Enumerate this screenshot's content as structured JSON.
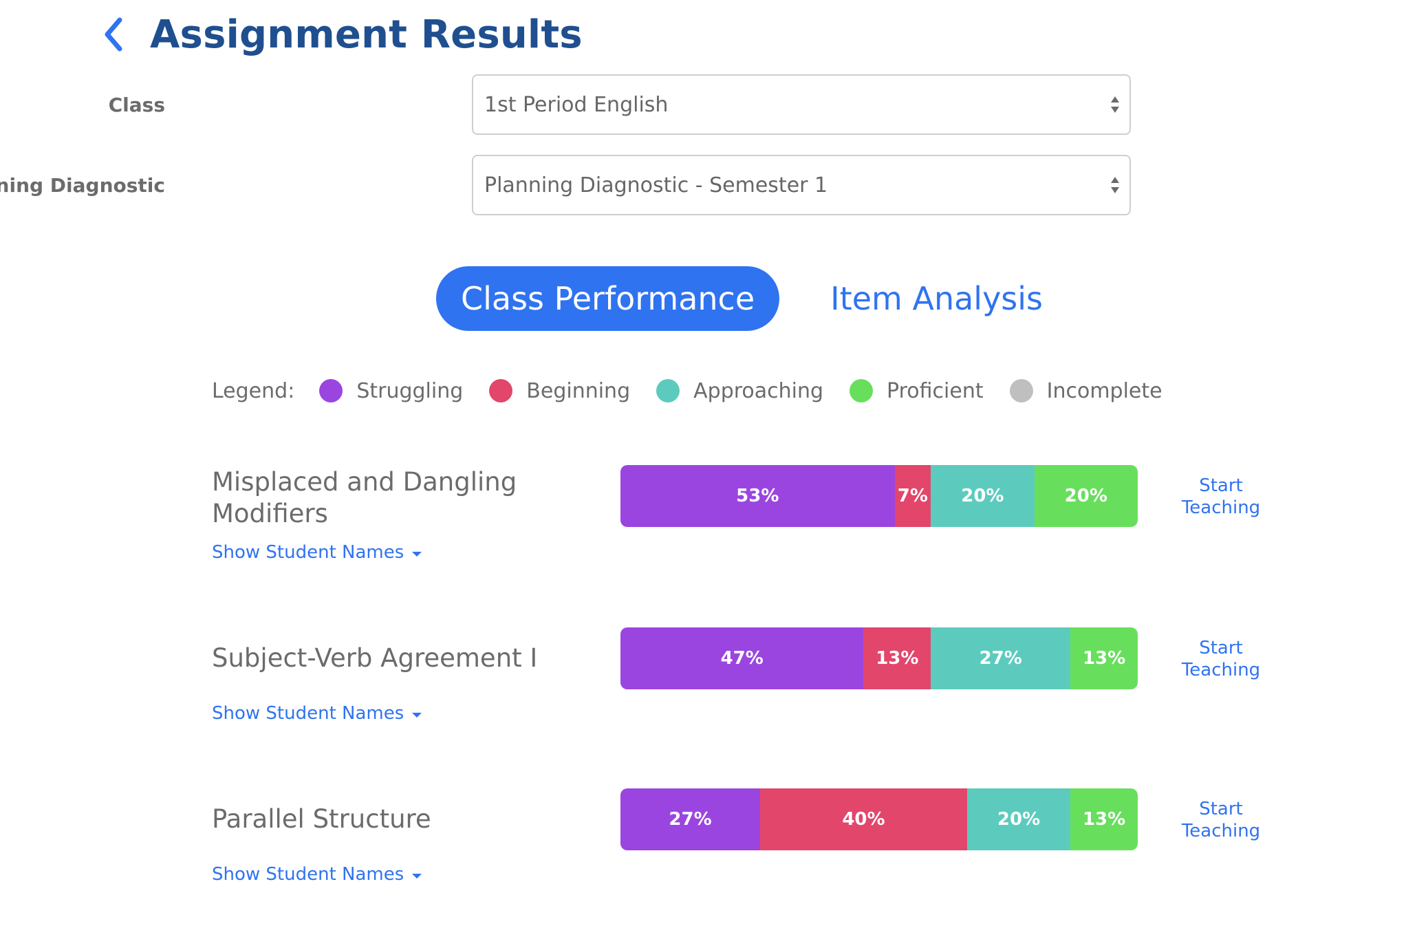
{
  "header": {
    "title": "Assignment Results"
  },
  "form": {
    "class": {
      "label": "Class",
      "value": "1st Period English"
    },
    "diagnostic": {
      "label": "Planning Diagnostic",
      "value": "Planning Diagnostic - Semester 1"
    }
  },
  "tabs": {
    "active": "Class Performance",
    "inactive": "Item Analysis"
  },
  "legend": {
    "label": "Legend:",
    "items": [
      {
        "label": "Struggling",
        "color": "#9b45e0"
      },
      {
        "label": "Beginning",
        "color": "#e2466b"
      },
      {
        "label": "Approaching",
        "color": "#5ccbbd"
      },
      {
        "label": "Proficient",
        "color": "#67df5c"
      },
      {
        "label": "Incomplete",
        "color": "#bfbfbf"
      }
    ]
  },
  "skills": [
    {
      "title": "Misplaced and Dangling Modifiers",
      "show_names": "Show Student Names",
      "start": "Start Teaching",
      "segments": [
        {
          "label": "53%",
          "value": 53,
          "color": "#9b45e0"
        },
        {
          "label": "7%",
          "value": 7,
          "color": "#e2466b"
        },
        {
          "label": "20%",
          "value": 20,
          "color": "#5ccbbd"
        },
        {
          "label": "20%",
          "value": 20,
          "color": "#67df5c"
        }
      ]
    },
    {
      "title": "Subject-Verb Agreement I",
      "show_names": "Show Student Names",
      "start": "Start Teaching",
      "segments": [
        {
          "label": "47%",
          "value": 47,
          "color": "#9b45e0"
        },
        {
          "label": "13%",
          "value": 13,
          "color": "#e2466b"
        },
        {
          "label": "27%",
          "value": 27,
          "color": "#5ccbbd"
        },
        {
          "label": "13%",
          "value": 13,
          "color": "#67df5c"
        }
      ]
    },
    {
      "title": "Parallel Structure",
      "show_names": "Show Student Names",
      "start": "Start Teaching",
      "segments": [
        {
          "label": "27%",
          "value": 27,
          "color": "#9b45e0"
        },
        {
          "label": "40%",
          "value": 40,
          "color": "#e2466b"
        },
        {
          "label": "20%",
          "value": 20,
          "color": "#5ccbbd"
        },
        {
          "label": "13%",
          "value": 13,
          "color": "#67df5c"
        }
      ]
    }
  ]
}
